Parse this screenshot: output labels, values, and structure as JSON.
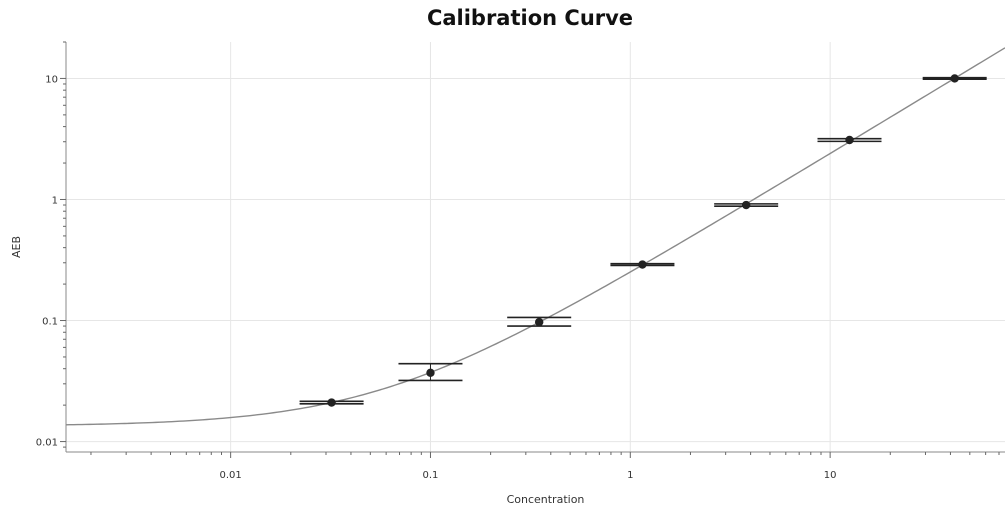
{
  "chart_data": {
    "type": "scatter",
    "title": "Calibration Curve",
    "xlabel": "Concentration",
    "ylabel": "AEB",
    "x_scale": "log",
    "y_scale": "log",
    "xlim": [
      0.0015,
      75
    ],
    "ylim": [
      0.0082,
      20
    ],
    "x_ticks": [
      {
        "value": 0.01,
        "label": "0.01"
      },
      {
        "value": 0.1,
        "label": "0.1"
      },
      {
        "value": 1,
        "label": "1"
      },
      {
        "value": 10,
        "label": "10"
      }
    ],
    "y_ticks": [
      {
        "value": 0.01,
        "label": "0.01"
      },
      {
        "value": 0.1,
        "label": "0.1"
      },
      {
        "value": 1,
        "label": "1"
      },
      {
        "value": 10,
        "label": "10"
      }
    ],
    "grid": true,
    "colors": {
      "curve": "#8a8a8a",
      "points": "#222222",
      "grid": "#e6e6e6",
      "axis": "#888888"
    },
    "points": [
      {
        "x": 0.032,
        "y": 0.021,
        "y_low": 0.0205,
        "y_high": 0.0215
      },
      {
        "x": 0.1,
        "y": 0.037,
        "y_low": 0.032,
        "y_high": 0.044
      },
      {
        "x": 0.35,
        "y": 0.097,
        "y_low": 0.09,
        "y_high": 0.106
      },
      {
        "x": 1.15,
        "y": 0.29,
        "y_low": 0.285,
        "y_high": 0.295
      },
      {
        "x": 3.8,
        "y": 0.9,
        "y_low": 0.88,
        "y_high": 0.92
      },
      {
        "x": 12.5,
        "y": 3.1,
        "y_low": 3.02,
        "y_high": 3.18
      },
      {
        "x": 42,
        "y": 10,
        "y_low": 9.85,
        "y_high": 10.15
      }
    ],
    "curve": {
      "model": "linear",
      "slope": 0.2385,
      "intercept": 0.0134
    }
  }
}
